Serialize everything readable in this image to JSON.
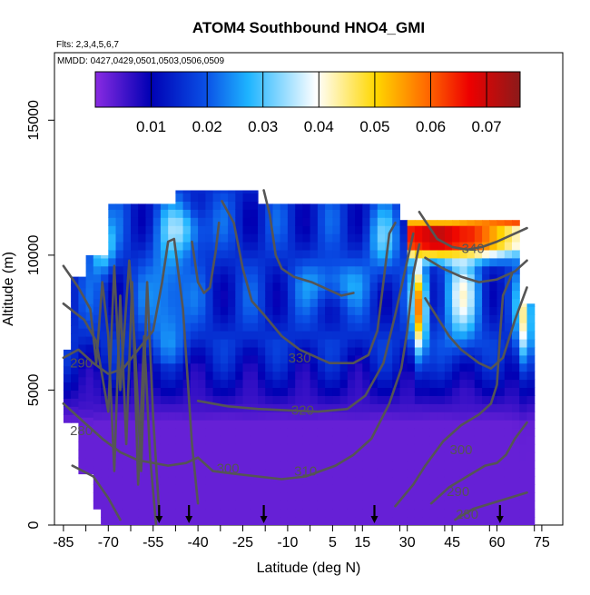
{
  "chart_data": {
    "type": "heatmap",
    "title": "ATOM4 Southbound HNO4_GMI",
    "flights_note": "Flts: 2,3,4,5,6,7",
    "dates_note": "MMDD: 0427,0429,0501,0503,0506,0509",
    "xlabel": "Latitude (deg N)",
    "ylabel": "Altitude (m)",
    "xlim": [
      -88,
      82
    ],
    "ylim": [
      0,
      17500
    ],
    "x_ticks": [
      -85,
      -70,
      -55,
      -40,
      -25,
      -10,
      5,
      15,
      30,
      45,
      60,
      75
    ],
    "y_ticks": [
      0,
      5000,
      10000,
      15000
    ],
    "colorbar": {
      "min": 0.0,
      "max": 0.076,
      "ticks": [
        0.01,
        0.02,
        0.03,
        0.04,
        0.05,
        0.06,
        0.07
      ],
      "colors": [
        "#8a2be2",
        "#0000b4",
        "#1e90ff",
        "#ffffff",
        "#ffd700",
        "#ff4500",
        "#e00000",
        "#8b1a1a"
      ]
    },
    "isentrope_labels": [
      {
        "text": "290",
        "lat": -79,
        "alt": 6000
      },
      {
        "text": "280",
        "lat": -79,
        "alt": 3500
      },
      {
        "text": "300",
        "lat": -30,
        "alt": 2100
      },
      {
        "text": "310",
        "lat": -4,
        "alt": 2000
      },
      {
        "text": "320",
        "lat": -5,
        "alt": 4250
      },
      {
        "text": "330",
        "lat": -6,
        "alt": 6200
      },
      {
        "text": "340",
        "lat": 52,
        "alt": 10250
      },
      {
        "text": "300",
        "lat": 48,
        "alt": 2800
      },
      {
        "text": "290",
        "lat": 47,
        "alt": 1250
      },
      {
        "text": "280",
        "lat": 50,
        "alt": 400
      }
    ],
    "profile_markers_lat": [
      -53,
      -43,
      -18,
      19,
      61
    ],
    "cross_section": {
      "lat_range": [
        -85,
        72
      ],
      "alt_range": [
        0,
        12500
      ],
      "description_values": [
        {
          "lat_from": -85,
          "lat_to": 72,
          "alt_from": 0,
          "alt_to": 4000,
          "value": 0.002
        },
        {
          "lat_from": -85,
          "lat_to": -20,
          "alt_from": 6500,
          "alt_to": 12000,
          "value": 0.012
        },
        {
          "lat_from": 32,
          "lat_to": 36,
          "alt_from": 6000,
          "alt_to": 10000,
          "value": 0.04
        },
        {
          "lat_from": 30,
          "lat_to": 70,
          "alt_from": 10000,
          "alt_to": 11500,
          "value": 0.065
        }
      ]
    }
  }
}
